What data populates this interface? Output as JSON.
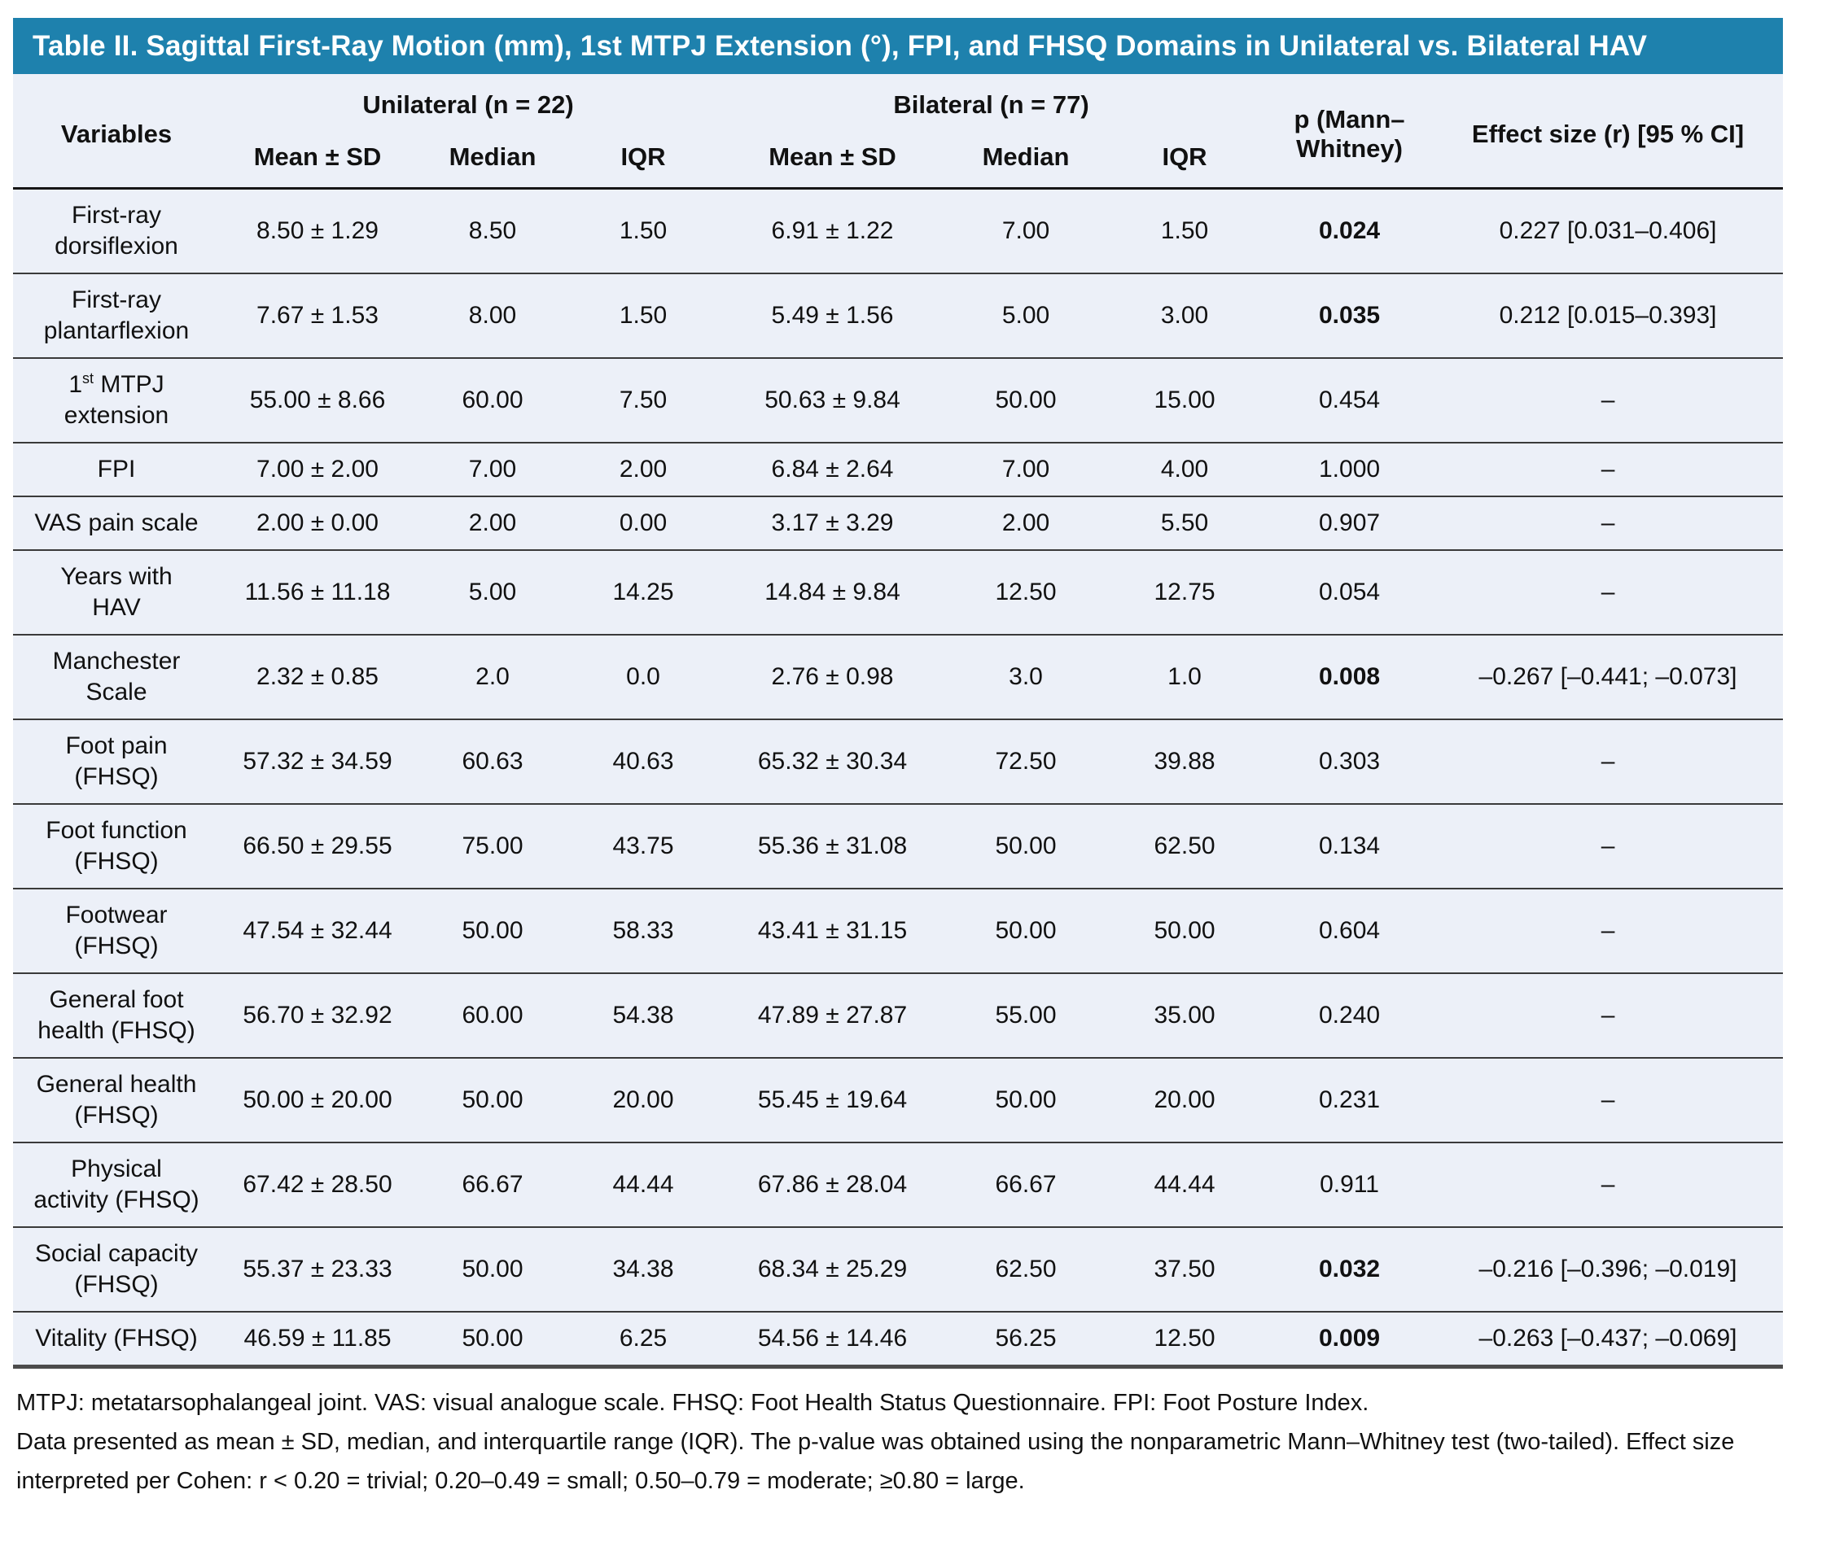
{
  "title": "Table II. Sagittal First-Ray Motion (mm), 1st MTPJ Extension (°), FPI, and FHSQ Domains in Unilateral vs. Bilateral HAV",
  "colors": {
    "title_bar": "#1e81ad",
    "table_bg": "#ecf0f8",
    "row_line": "#3a3a3a",
    "text": "#111111"
  },
  "header": {
    "variables": "Variables",
    "unilateral_group": "Unilateral (n = 22)",
    "bilateral_group": "Bilateral (n = 77)",
    "subheaders": [
      "Mean ± SD",
      "Median",
      "IQR"
    ],
    "p_label": "p (Mann–Whitney)",
    "effect_label": "Effect size (r) [95 % CI]"
  },
  "rows": [
    {
      "label": "First-ray dorsiflexion",
      "uni_mean_sd": "8.50 ± 1.29",
      "uni_median": "8.50",
      "uni_iqr": "1.50",
      "bi_mean_sd": "6.91 ± 1.22",
      "bi_median": "7.00",
      "bi_iqr": "1.50",
      "p": "0.024",
      "p_bold": true,
      "effect": "0.227 [0.031–0.406]"
    },
    {
      "label": "First-ray plantarflexion",
      "uni_mean_sd": "7.67 ± 1.53",
      "uni_median": "8.00",
      "uni_iqr": "1.50",
      "bi_mean_sd": "5.49 ± 1.56",
      "bi_median": "5.00",
      "bi_iqr": "3.00",
      "p": "0.035",
      "p_bold": true,
      "effect": "0.212 [0.015–0.393]"
    },
    {
      "label": "1st MTPJ extension",
      "label_sup_st": true,
      "uni_mean_sd": "55.00 ± 8.66",
      "uni_median": "60.00",
      "uni_iqr": "7.50",
      "bi_mean_sd": "50.63 ± 9.84",
      "bi_median": "50.00",
      "bi_iqr": "15.00",
      "p": "0.454",
      "p_bold": false,
      "effect": "–"
    },
    {
      "label": "FPI",
      "uni_mean_sd": "7.00 ± 2.00",
      "uni_median": "7.00",
      "uni_iqr": "2.00",
      "bi_mean_sd": "6.84 ± 2.64",
      "bi_median": "7.00",
      "bi_iqr": "4.00",
      "p": "1.000",
      "p_bold": false,
      "effect": "–"
    },
    {
      "label": "VAS pain scale",
      "uni_mean_sd": "2.00 ± 0.00",
      "uni_median": "2.00",
      "uni_iqr": "0.00",
      "bi_mean_sd": "3.17 ± 3.29",
      "bi_median": "2.00",
      "bi_iqr": "5.50",
      "p": "0.907",
      "p_bold": false,
      "effect": "–"
    },
    {
      "label": "Years with HAV",
      "uni_mean_sd": "11.56 ± 11.18",
      "uni_median": "5.00",
      "uni_iqr": "14.25",
      "bi_mean_sd": "14.84 ± 9.84",
      "bi_median": "12.50",
      "bi_iqr": "12.75",
      "p": "0.054",
      "p_bold": false,
      "effect": "–"
    },
    {
      "label": "Manchester Scale",
      "uni_mean_sd": "2.32 ± 0.85",
      "uni_median": "2.0",
      "uni_iqr": "0.0",
      "bi_mean_sd": "2.76 ± 0.98",
      "bi_median": "3.0",
      "bi_iqr": "1.0",
      "p": "0.008",
      "p_bold": true,
      "effect": "–0.267 [–0.441; –0.073]"
    },
    {
      "label": "Foot pain (FHSQ)",
      "uni_mean_sd": "57.32 ± 34.59",
      "uni_median": "60.63",
      "uni_iqr": "40.63",
      "bi_mean_sd": "65.32 ± 30.34",
      "bi_median": "72.50",
      "bi_iqr": "39.88",
      "p": "0.303",
      "p_bold": false,
      "effect": "–"
    },
    {
      "label": "Foot function (FHSQ)",
      "uni_mean_sd": "66.50 ± 29.55",
      "uni_median": "75.00",
      "uni_iqr": "43.75",
      "bi_mean_sd": "55.36 ± 31.08",
      "bi_median": "50.00",
      "bi_iqr": "62.50",
      "p": "0.134",
      "p_bold": false,
      "effect": "–"
    },
    {
      "label": "Footwear (FHSQ)",
      "uni_mean_sd": "47.54 ± 32.44",
      "uni_median": "50.00",
      "uni_iqr": "58.33",
      "bi_mean_sd": "43.41 ± 31.15",
      "bi_median": "50.00",
      "bi_iqr": "50.00",
      "p": "0.604",
      "p_bold": false,
      "effect": "–"
    },
    {
      "label": "General foot health (FHSQ)",
      "uni_mean_sd": "56.70 ± 32.92",
      "uni_median": "60.00",
      "uni_iqr": "54.38",
      "bi_mean_sd": "47.89 ± 27.87",
      "bi_median": "55.00",
      "bi_iqr": "35.00",
      "p": "0.240",
      "p_bold": false,
      "effect": "–"
    },
    {
      "label": "General health (FHSQ)",
      "uni_mean_sd": "50.00 ± 20.00",
      "uni_median": "50.00",
      "uni_iqr": "20.00",
      "bi_mean_sd": "55.45 ± 19.64",
      "bi_median": "50.00",
      "bi_iqr": "20.00",
      "p": "0.231",
      "p_bold": false,
      "effect": "–"
    },
    {
      "label": "Physical activity (FHSQ)",
      "uni_mean_sd": "67.42 ± 28.50",
      "uni_median": "66.67",
      "uni_iqr": "44.44",
      "bi_mean_sd": "67.86 ± 28.04",
      "bi_median": "66.67",
      "bi_iqr": "44.44",
      "p": "0.911",
      "p_bold": false,
      "effect": "–"
    },
    {
      "label": "Social capacity (FHSQ)",
      "uni_mean_sd": "55.37 ± 23.33",
      "uni_median": "50.00",
      "uni_iqr": "34.38",
      "bi_mean_sd": "68.34 ± 25.29",
      "bi_median": "62.50",
      "bi_iqr": "37.50",
      "p": "0.032",
      "p_bold": true,
      "effect": "–0.216 [–0.396; –0.019]"
    },
    {
      "label": "Vitality (FHSQ)",
      "uni_mean_sd": "46.59 ± 11.85",
      "uni_median": "50.00",
      "uni_iqr": "6.25",
      "bi_mean_sd": "54.56 ± 14.46",
      "bi_median": "56.25",
      "bi_iqr": "12.50",
      "p": "0.009",
      "p_bold": true,
      "effect": "–0.263 [–0.437; –0.069]"
    }
  ],
  "footnotes": {
    "line1": "MTPJ: metatarsophalangeal joint. VAS: visual analogue scale. FHSQ: Foot Health Status Questionnaire. FPI: Foot Posture Index.",
    "line2": "Data presented as mean ± SD, median, and interquartile range (IQR). The p-value was obtained using the nonparametric Mann–Whitney test (two-tailed). Effect size interpreted per Cohen: r < 0.20 = trivial; 0.20–0.49 = small; 0.50–0.79 = moderate; ≥0.80 = large."
  }
}
